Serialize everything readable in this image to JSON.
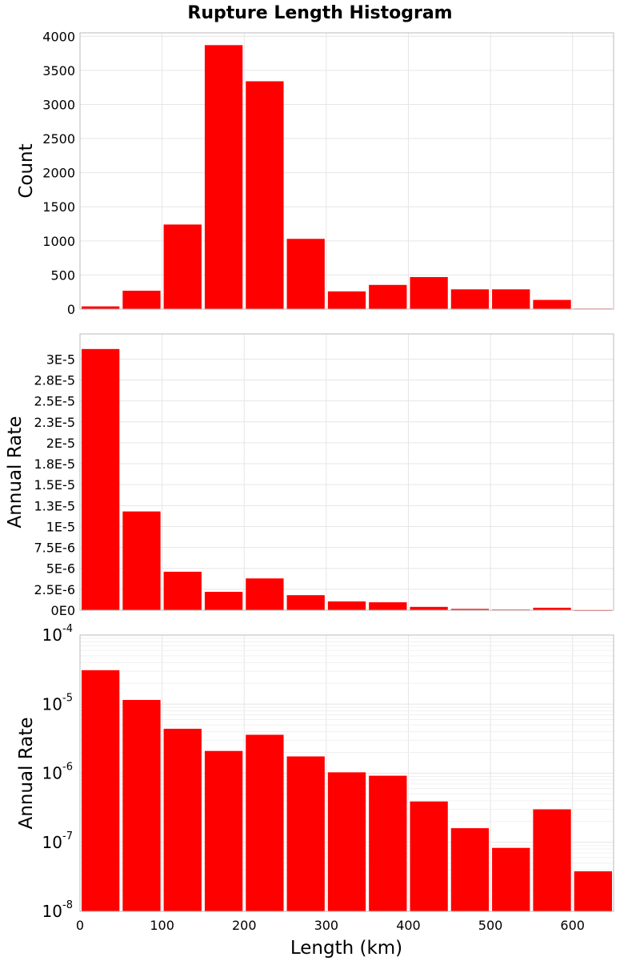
{
  "chart_data": {
    "title": "Rupture Length Histogram",
    "type": "bar",
    "colors": {
      "bar": "#ff0000",
      "grid": "#e6e6e6",
      "frame": "#bbbbbb"
    },
    "x": {
      "label": "Length (km)",
      "range": [
        0,
        650
      ],
      "ticks": [
        0,
        100,
        200,
        300,
        400,
        500,
        600
      ],
      "tick_labels": [
        "0",
        "100",
        "200",
        "300",
        "400",
        "500",
        "600"
      ]
    },
    "bins": {
      "width": 50,
      "centers": [
        25,
        75,
        125,
        175,
        225,
        275,
        325,
        375,
        425,
        475,
        525,
        575,
        625
      ]
    },
    "panels": [
      {
        "name": "count",
        "ylabel": "Count",
        "scale": "linear",
        "ylim": [
          0,
          4050
        ],
        "yticks": [
          0,
          500,
          1000,
          1500,
          2000,
          2500,
          3000,
          3500,
          4000
        ],
        "ytick_labels": [
          "0",
          "500",
          "1000",
          "1500",
          "2000",
          "2500",
          "3000",
          "3500",
          "4000"
        ],
        "values": [
          40,
          270,
          1240,
          3870,
          3340,
          1030,
          260,
          355,
          470,
          290,
          290,
          135,
          8
        ]
      },
      {
        "name": "rate-linear",
        "ylabel": "Annual Rate",
        "scale": "linear",
        "ylim": [
          0,
          3.3e-05
        ],
        "yticks": [
          0,
          2.5e-06,
          5e-06,
          7.5e-06,
          1e-05,
          1.25e-05,
          1.5e-05,
          1.75e-05,
          2e-05,
          2.25e-05,
          2.5e-05,
          2.75e-05,
          3e-05
        ],
        "ytick_labels": [
          "0E0",
          "2.5E-6",
          "5E-6",
          "7.5E-6",
          "1E-5",
          "1.3E-5",
          "1.5E-5",
          "1.8E-5",
          "2E-5",
          "2.3E-5",
          "2.5E-5",
          "2.8E-5",
          "3E-5"
        ],
        "values": [
          3.12e-05,
          1.18e-05,
          4.6e-06,
          2.2e-06,
          3.8e-06,
          1.8e-06,
          1.05e-06,
          9.5e-07,
          4e-07,
          1.6e-07,
          8.5e-08,
          3e-07,
          3.8e-08
        ]
      },
      {
        "name": "rate-log",
        "ylabel": "Annual Rate",
        "scale": "log",
        "ylim": [
          1e-08,
          0.0001
        ],
        "yticks": [
          1e-08,
          1e-07,
          1e-06,
          1e-05,
          0.0001
        ],
        "ytick_labels": [
          {
            "base": "10",
            "exp": "-8"
          },
          {
            "base": "10",
            "exp": "-7"
          },
          {
            "base": "10",
            "exp": "-6"
          },
          {
            "base": "10",
            "exp": "-5"
          },
          {
            "base": "10",
            "exp": "-4"
          }
        ],
        "values": [
          3.1e-05,
          1.15e-05,
          4.4e-06,
          2.1e-06,
          3.6e-06,
          1.75e-06,
          1.03e-06,
          9.2e-07,
          3.9e-07,
          1.6e-07,
          8.3e-08,
          3e-07,
          3.8e-08
        ]
      }
    ]
  }
}
